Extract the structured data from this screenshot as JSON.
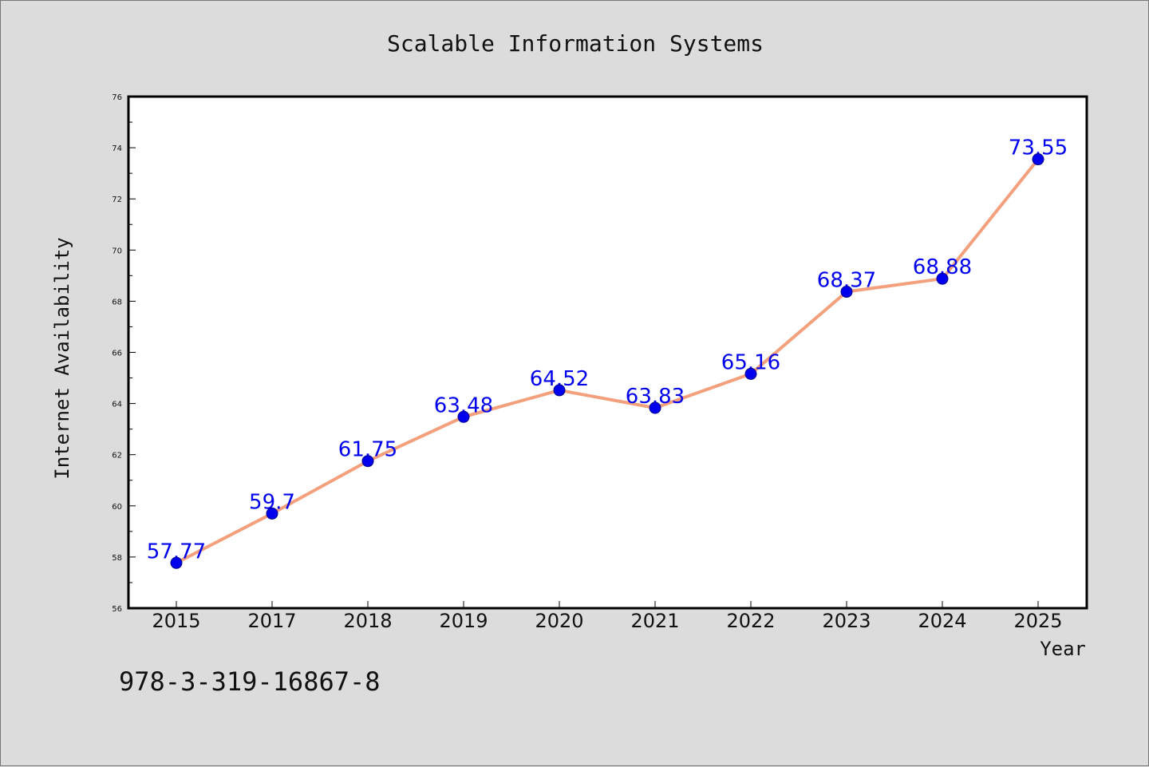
{
  "chart_data": {
    "type": "line",
    "title": "Scalable Information Systems",
    "xlabel": "Year",
    "ylabel": "Internet Availability",
    "categories": [
      "2015",
      "2017",
      "2018",
      "2019",
      "2020",
      "2021",
      "2022",
      "2023",
      "2024",
      "2025"
    ],
    "series": [
      {
        "values": [
          57.77,
          59.7,
          61.75,
          63.48,
          64.52,
          63.83,
          65.16,
          68.37,
          68.88,
          73.55
        ]
      }
    ],
    "data_labels": [
      "57.77",
      "59.7",
      "61.75",
      "63.48",
      "64.52",
      "63.83",
      "65.16",
      "68.37",
      "68.88",
      "73.55"
    ],
    "ylim": [
      56,
      76
    ],
    "yticks": [
      56,
      58,
      60,
      62,
      64,
      66,
      68,
      70,
      72,
      74,
      76
    ],
    "grid": false,
    "legend": "none",
    "colors": {
      "line": "#f4a07c",
      "marker": "#0000ee",
      "label": "#0000ee",
      "background": "#dcdcdc",
      "plot_area": "#ffffff"
    }
  },
  "footnote": "978-3-319-16867-8"
}
